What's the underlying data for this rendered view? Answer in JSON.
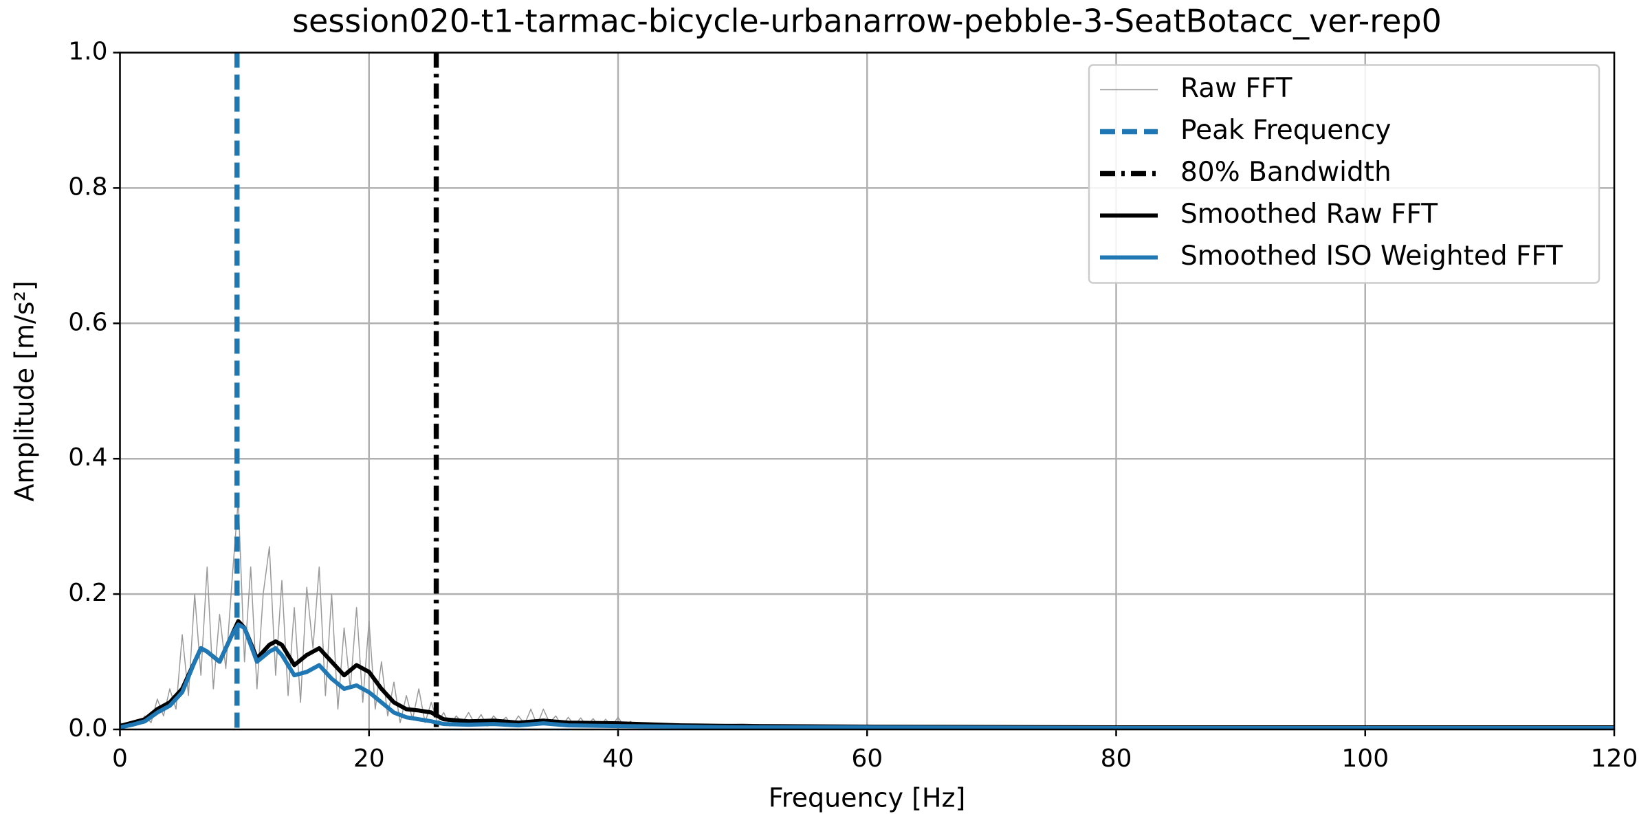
{
  "chart_data": {
    "type": "line",
    "title": "session020-t1-tarmac-bicycle-urbanarrow-pebble-3-SeatBotacc_ver-rep0",
    "xlabel": "Frequency [Hz]",
    "ylabel": "Amplitude [m/s²]",
    "xlim": [
      0,
      120
    ],
    "ylim": [
      0,
      1
    ],
    "xticks": [
      0,
      20,
      40,
      60,
      80,
      100,
      120
    ],
    "yticks": [
      {
        "value": 0,
        "label": "0.0"
      },
      0.2,
      0.4,
      0.6,
      0.8,
      {
        "value": 1,
        "label": "1.0"
      }
    ],
    "grid": true,
    "legend": "upper right",
    "series": [
      {
        "name": "Raw FFT",
        "color": "#999999",
        "x": [
          0,
          0.5,
          1,
          1.5,
          2,
          2.5,
          3,
          3.5,
          4,
          4.5,
          5,
          5.5,
          6,
          6.5,
          7,
          7.5,
          8,
          8.5,
          9,
          9.5,
          10,
          10.5,
          11,
          11.5,
          12,
          12.5,
          13,
          13.5,
          14,
          14.5,
          15,
          15.5,
          16,
          16.5,
          17,
          17.5,
          18,
          18.5,
          19,
          19.5,
          20,
          20.5,
          21,
          21.5,
          22,
          22.5,
          23,
          23.5,
          24,
          24.5,
          25,
          25.5,
          26,
          26.5,
          27,
          27.5,
          28,
          28.5,
          29,
          29.5,
          30,
          30.5,
          31,
          31.5,
          32,
          32.5,
          33,
          33.5,
          34,
          34.5,
          35,
          35.5,
          36,
          36.5,
          37,
          37.5,
          38,
          38.5,
          39,
          39.5,
          40,
          40.5,
          41,
          41.5,
          42,
          45,
          50,
          55,
          60,
          70,
          80,
          90,
          100,
          110,
          120
        ],
        "values": [
          0.01,
          0.005,
          0.012,
          0.008,
          0.02,
          0.01,
          0.045,
          0.02,
          0.06,
          0.03,
          0.14,
          0.05,
          0.2,
          0.08,
          0.24,
          0.06,
          0.17,
          0.09,
          0.22,
          0.34,
          0.1,
          0.24,
          0.06,
          0.2,
          0.27,
          0.08,
          0.22,
          0.05,
          0.18,
          0.04,
          0.21,
          0.12,
          0.24,
          0.05,
          0.2,
          0.03,
          0.15,
          0.06,
          0.18,
          0.04,
          0.16,
          0.03,
          0.1,
          0.02,
          0.07,
          0.01,
          0.05,
          0.015,
          0.06,
          0.01,
          0.04,
          0.01,
          0.025,
          0.005,
          0.02,
          0.01,
          0.025,
          0.008,
          0.022,
          0.005,
          0.02,
          0.01,
          0.018,
          0.005,
          0.02,
          0.008,
          0.03,
          0.006,
          0.03,
          0.01,
          0.02,
          0.005,
          0.018,
          0.006,
          0.017,
          0.005,
          0.016,
          0.004,
          0.015,
          0.005,
          0.018,
          0.004,
          0.012,
          0.004,
          0.008,
          0.006,
          0.008,
          0.004,
          0.005,
          0.003,
          0.004,
          0.003,
          0.003,
          0.003,
          0.003
        ]
      },
      {
        "name": "Smoothed Raw FFT",
        "color": "#000000",
        "x": [
          0,
          1,
          2,
          3,
          4,
          5,
          6,
          6.5,
          7,
          8,
          9,
          9.5,
          10,
          11,
          12,
          12.5,
          13,
          14,
          15,
          16,
          17,
          18,
          19,
          20,
          21,
          22,
          23,
          24,
          25,
          26,
          28,
          30,
          32,
          34,
          36,
          40,
          45,
          50,
          60,
          80,
          100,
          120
        ],
        "values": [
          0.005,
          0.01,
          0.015,
          0.03,
          0.04,
          0.06,
          0.1,
          0.12,
          0.115,
          0.1,
          0.14,
          0.16,
          0.15,
          0.105,
          0.125,
          0.13,
          0.125,
          0.095,
          0.11,
          0.12,
          0.1,
          0.08,
          0.095,
          0.085,
          0.06,
          0.04,
          0.03,
          0.028,
          0.025,
          0.015,
          0.012,
          0.013,
          0.01,
          0.013,
          0.01,
          0.009,
          0.006,
          0.005,
          0.004,
          0.003,
          0.003,
          0.003
        ]
      },
      {
        "name": "Smoothed ISO Weighted FFT",
        "color": "#1f77b4",
        "x": [
          0,
          1,
          2,
          3,
          4,
          5,
          6,
          6.5,
          7,
          8,
          9,
          9.5,
          10,
          11,
          12,
          12.5,
          13,
          14,
          15,
          16,
          17,
          18,
          19,
          20,
          21,
          22,
          23,
          24,
          25,
          26,
          28,
          30,
          32,
          34,
          36,
          40,
          45,
          50,
          60,
          80,
          100,
          120
        ],
        "values": [
          0.003,
          0.007,
          0.012,
          0.025,
          0.035,
          0.055,
          0.1,
          0.12,
          0.115,
          0.1,
          0.14,
          0.155,
          0.15,
          0.1,
          0.115,
          0.12,
          0.11,
          0.08,
          0.085,
          0.095,
          0.075,
          0.06,
          0.065,
          0.055,
          0.04,
          0.025,
          0.018,
          0.015,
          0.012,
          0.008,
          0.007,
          0.008,
          0.006,
          0.009,
          0.006,
          0.005,
          0.004,
          0.003,
          0.003,
          0.002,
          0.002,
          0.002
        ]
      }
    ],
    "vlines": [
      {
        "name": "Peak Frequency",
        "x": 9.4,
        "color": "#1f77b4",
        "dash": "dashed"
      },
      {
        "name": "80% Bandwidth",
        "x": 25.4,
        "color": "#000000",
        "dash": "dashdot"
      }
    ]
  }
}
